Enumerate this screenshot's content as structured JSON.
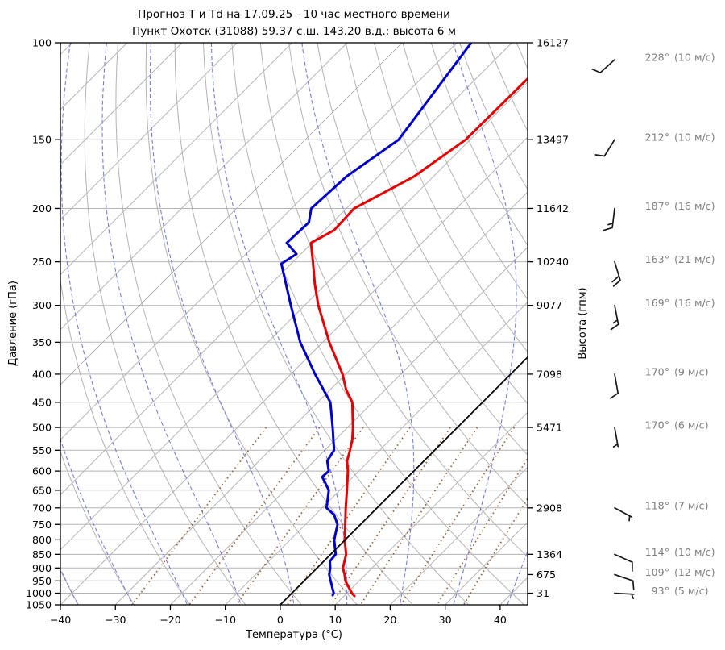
{
  "title": {
    "line1": "Прогноз Т и Td на 17.09.25 - 10 час местного времени",
    "line2": "Пункт Охотск (31088) 59.37 с.ш. 143.20 в.д.; высота 6 м"
  },
  "axes": {
    "x_label": "Температура (°C)",
    "y_left_label": "Давление (гПа)",
    "y_right_label": "Высота (гпм)",
    "x_range": [
      -40,
      45
    ],
    "x_tick_values": [
      -40,
      -30,
      -20,
      -10,
      0,
      10,
      20,
      30,
      40
    ],
    "x_tick_labels": [
      "−40",
      "−30",
      "−20",
      "−10",
      "0",
      "10",
      "20",
      "30",
      "40"
    ],
    "p_range": [
      100,
      1050
    ],
    "p_ticks": [
      100,
      150,
      200,
      250,
      300,
      350,
      400,
      450,
      500,
      550,
      600,
      650,
      700,
      750,
      800,
      850,
      900,
      950,
      1000,
      1050
    ],
    "height_ticks": [
      {
        "p": 100,
        "label": "16127"
      },
      {
        "p": 150,
        "label": "13497"
      },
      {
        "p": 200,
        "label": "11642"
      },
      {
        "p": 250,
        "label": "10240"
      },
      {
        "p": 300,
        "label": "9077"
      },
      {
        "p": 400,
        "label": "7098"
      },
      {
        "p": 500,
        "label": "5471"
      },
      {
        "p": 700,
        "label": "2908"
      },
      {
        "p": 850,
        "label": "1364"
      },
      {
        "p": 925,
        "label": "675"
      },
      {
        "p": 1000,
        "label": "31"
      }
    ]
  },
  "chart_data": {
    "type": "line",
    "variant": "skew-t-log-p",
    "title": "Прогноз Т и Td на 17.09.25 - 10 час местного времени — Пункт Охотск (31088) 59.37 с.ш. 143.20 в.д.; высота 6 м",
    "xlabel": "Температура (°C)",
    "ylabel_left": "Давление (гПа)",
    "ylabel_right": "Высота (гпм)",
    "xlim": [
      -40,
      45
    ],
    "plim": [
      100,
      1050
    ],
    "skew_deg": 45,
    "series": [
      {
        "name": "temperature",
        "label": "Т",
        "color_key": "temperature",
        "points_p_c": [
          [
            100,
            -50.5
          ],
          [
            150,
            -50.8
          ],
          [
            175,
            -53.5
          ],
          [
            200,
            -58.6
          ],
          [
            219,
            -58.3
          ],
          [
            231,
            -60.2
          ],
          [
            250,
            -56.4
          ],
          [
            275,
            -51.9
          ],
          [
            300,
            -47.5
          ],
          [
            350,
            -38.8
          ],
          [
            400,
            -30.6
          ],
          [
            427,
            -27.1
          ],
          [
            450,
            -23.7
          ],
          [
            500,
            -19.0
          ],
          [
            525,
            -17.0
          ],
          [
            550,
            -15.4
          ],
          [
            575,
            -14.0
          ],
          [
            600,
            -12.0
          ],
          [
            650,
            -8.7
          ],
          [
            700,
            -5.7
          ],
          [
            750,
            -2.8
          ],
          [
            800,
            -0.1
          ],
          [
            850,
            2.8
          ],
          [
            900,
            4.7
          ],
          [
            925,
            6.2
          ],
          [
            950,
            7.5
          ],
          [
            1000,
            10.9
          ],
          [
            1012,
            11.9
          ]
        ]
      },
      {
        "name": "dewpoint",
        "label": "Td",
        "color_key": "dewpoint",
        "points_p_c": [
          [
            100,
            -67.4
          ],
          [
            150,
            -63.0
          ],
          [
            175,
            -65.8
          ],
          [
            200,
            -66.4
          ],
          [
            212,
            -64.3
          ],
          [
            231,
            -64.6
          ],
          [
            242,
            -60.8
          ],
          [
            252,
            -61.8
          ],
          [
            300,
            -52.5
          ],
          [
            350,
            -44.1
          ],
          [
            400,
            -35.6
          ],
          [
            450,
            -27.7
          ],
          [
            500,
            -22.7
          ],
          [
            550,
            -18.3
          ],
          [
            575,
            -17.6
          ],
          [
            600,
            -15.5
          ],
          [
            615,
            -15.6
          ],
          [
            650,
            -12.0
          ],
          [
            700,
            -9.2
          ],
          [
            720,
            -6.6
          ],
          [
            750,
            -4.2
          ],
          [
            800,
            -2.0
          ],
          [
            850,
            0.9
          ],
          [
            875,
            1.1
          ],
          [
            900,
            2.4
          ],
          [
            925,
            3.4
          ],
          [
            950,
            4.8
          ],
          [
            1000,
            7.6
          ],
          [
            1009,
            7.8
          ]
        ]
      }
    ],
    "reference_lines": {
      "isotherm_highlight_c": 0,
      "isotherms_c": {
        "from": -150,
        "to": 40,
        "step": 10
      },
      "dry_adiabats_c": {
        "from": -40,
        "to": 150,
        "step": 10
      },
      "moist_adiabats_start_c": {
        "from": -60,
        "to": 40,
        "step": 10
      },
      "mixing_ratio_g_kg": [
        0.4,
        1,
        2,
        4,
        7,
        10,
        16,
        24,
        32
      ],
      "mixing_ratio_p_span": [
        500,
        1050
      ]
    }
  },
  "winds": [
    {
      "p": 100,
      "dir": 228,
      "speed": 10,
      "deg": "228°",
      "spd": "(10 м/с)"
    },
    {
      "p": 150,
      "dir": 212,
      "speed": 10,
      "deg": "212°",
      "spd": "(10 м/с)"
    },
    {
      "p": 200,
      "dir": 187,
      "speed": 16,
      "deg": "187°",
      "spd": "(16 м/с)"
    },
    {
      "p": 250,
      "dir": 163,
      "speed": 21,
      "deg": "163°",
      "spd": "(21 м/с)"
    },
    {
      "p": 300,
      "dir": 169,
      "speed": 16,
      "deg": "169°",
      "spd": "(16 м/с)"
    },
    {
      "p": 400,
      "dir": 170,
      "speed": 9,
      "deg": "170°",
      "spd": "(9 м/с)"
    },
    {
      "p": 500,
      "dir": 170,
      "speed": 6,
      "deg": "170°",
      "spd": "(6 м/с)"
    },
    {
      "p": 700,
      "dir": 118,
      "speed": 7,
      "deg": "118°",
      "spd": "(7 м/с)"
    },
    {
      "p": 850,
      "dir": 114,
      "speed": 10,
      "deg": "114°",
      "spd": "(10 м/с)"
    },
    {
      "p": 925,
      "dir": 109,
      "speed": 12,
      "deg": "109°",
      "spd": "(12 м/с)"
    },
    {
      "p": 1000,
      "dir": 93,
      "speed": 5,
      "deg": "93°",
      "spd": "(5 м/с)"
    }
  ],
  "colors": {
    "temperature": "#e60000",
    "dewpoint": "#0000cc",
    "grid": "#b3b3b3",
    "moist_adiabat": "#7b7bdf",
    "mixing_ratio": "#9a6a42",
    "isotherm_highlight": "#000000",
    "axis": "#000000",
    "wind_text": "#808080",
    "barb": "#1a1a1a"
  }
}
